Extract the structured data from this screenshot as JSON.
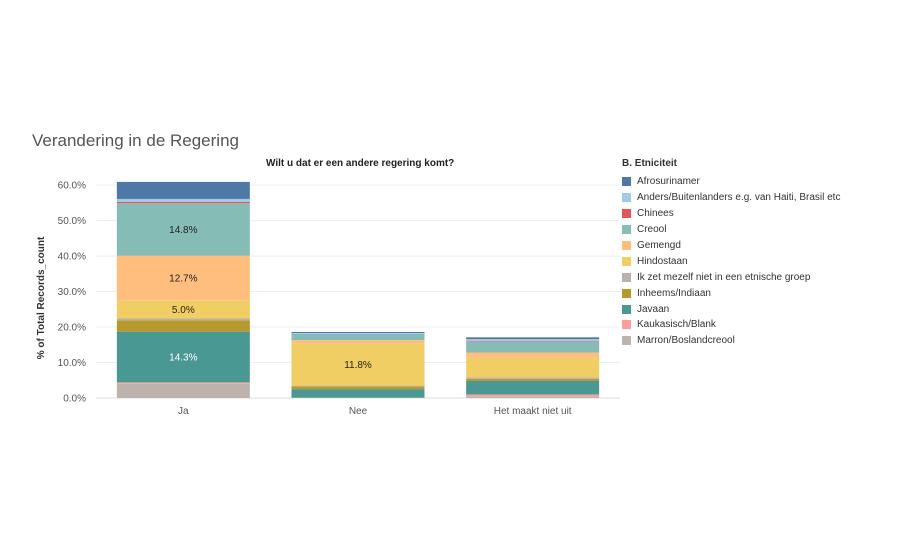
{
  "chart_data": {
    "type": "bar",
    "stacked": true,
    "title": "Verandering in de Regering",
    "subtitle": "Wilt u dat er een andere regering komt?",
    "ylabel": "% of Total Records_count",
    "xlabel": "",
    "ylim": [
      0,
      62
    ],
    "yticks": [
      "0.0%",
      "10.0%",
      "20.0%",
      "30.0%",
      "40.0%",
      "50.0%",
      "60.0%"
    ],
    "ytick_values": [
      0,
      10,
      20,
      30,
      40,
      50,
      60
    ],
    "grid": true,
    "legend_title": "B. Etniciteit",
    "legend_position": "right",
    "categories": [
      "Ja",
      "Nee",
      "Het maakt niet uit"
    ],
    "series": [
      {
        "name": "Afrosurinamer",
        "color": "#4e79a7",
        "values": [
          4.8,
          0.3,
          0.5
        ]
      },
      {
        "name": "Anders/Buitenlanders e.g. van Haiti, Brasil etc",
        "color": "#a0cbe8",
        "values": [
          0.8,
          0.2,
          0.6
        ]
      },
      {
        "name": "Chinees",
        "color": "#e15759",
        "values": [
          0.4,
          0.0,
          0.2
        ]
      },
      {
        "name": "Creool",
        "color": "#86bcb6",
        "values": [
          14.8,
          1.8,
          3.0
        ]
      },
      {
        "name": "Gemengd",
        "color": "#ffbe7d",
        "values": [
          12.7,
          1.0,
          1.5
        ]
      },
      {
        "name": "Hindostaan",
        "color": "#f1ce63",
        "values": [
          5.0,
          11.8,
          5.5
        ]
      },
      {
        "name": "Ik zet mezelf niet in een etnische groep",
        "color": "#bab0ac",
        "values": [
          0.5,
          0.2,
          0.4
        ]
      },
      {
        "name": "Inheems/Indiaan",
        "color": "#b6992d",
        "values": [
          3.2,
          0.8,
          0.6
        ]
      },
      {
        "name": "Javaan",
        "color": "#499894",
        "values": [
          14.3,
          2.4,
          3.8
        ]
      },
      {
        "name": "Kaukasisch/Blank",
        "color": "#ff9d9a",
        "values": [
          0.4,
          0.1,
          0.5
        ]
      },
      {
        "name": "Marron/Boslandcreool",
        "color": "#bcb3ad",
        "values": [
          4.0,
          0.0,
          0.5
        ]
      }
    ],
    "data_labels": [
      {
        "category": "Ja",
        "series": "Creool",
        "text": "14.8%"
      },
      {
        "category": "Ja",
        "series": "Gemengd",
        "text": "12.7%"
      },
      {
        "category": "Ja",
        "series": "Hindostaan",
        "text": "5.0%"
      },
      {
        "category": "Ja",
        "series": "Javaan",
        "text": "14.3%"
      },
      {
        "category": "Nee",
        "series": "Hindostaan",
        "text": "11.8%"
      }
    ]
  }
}
